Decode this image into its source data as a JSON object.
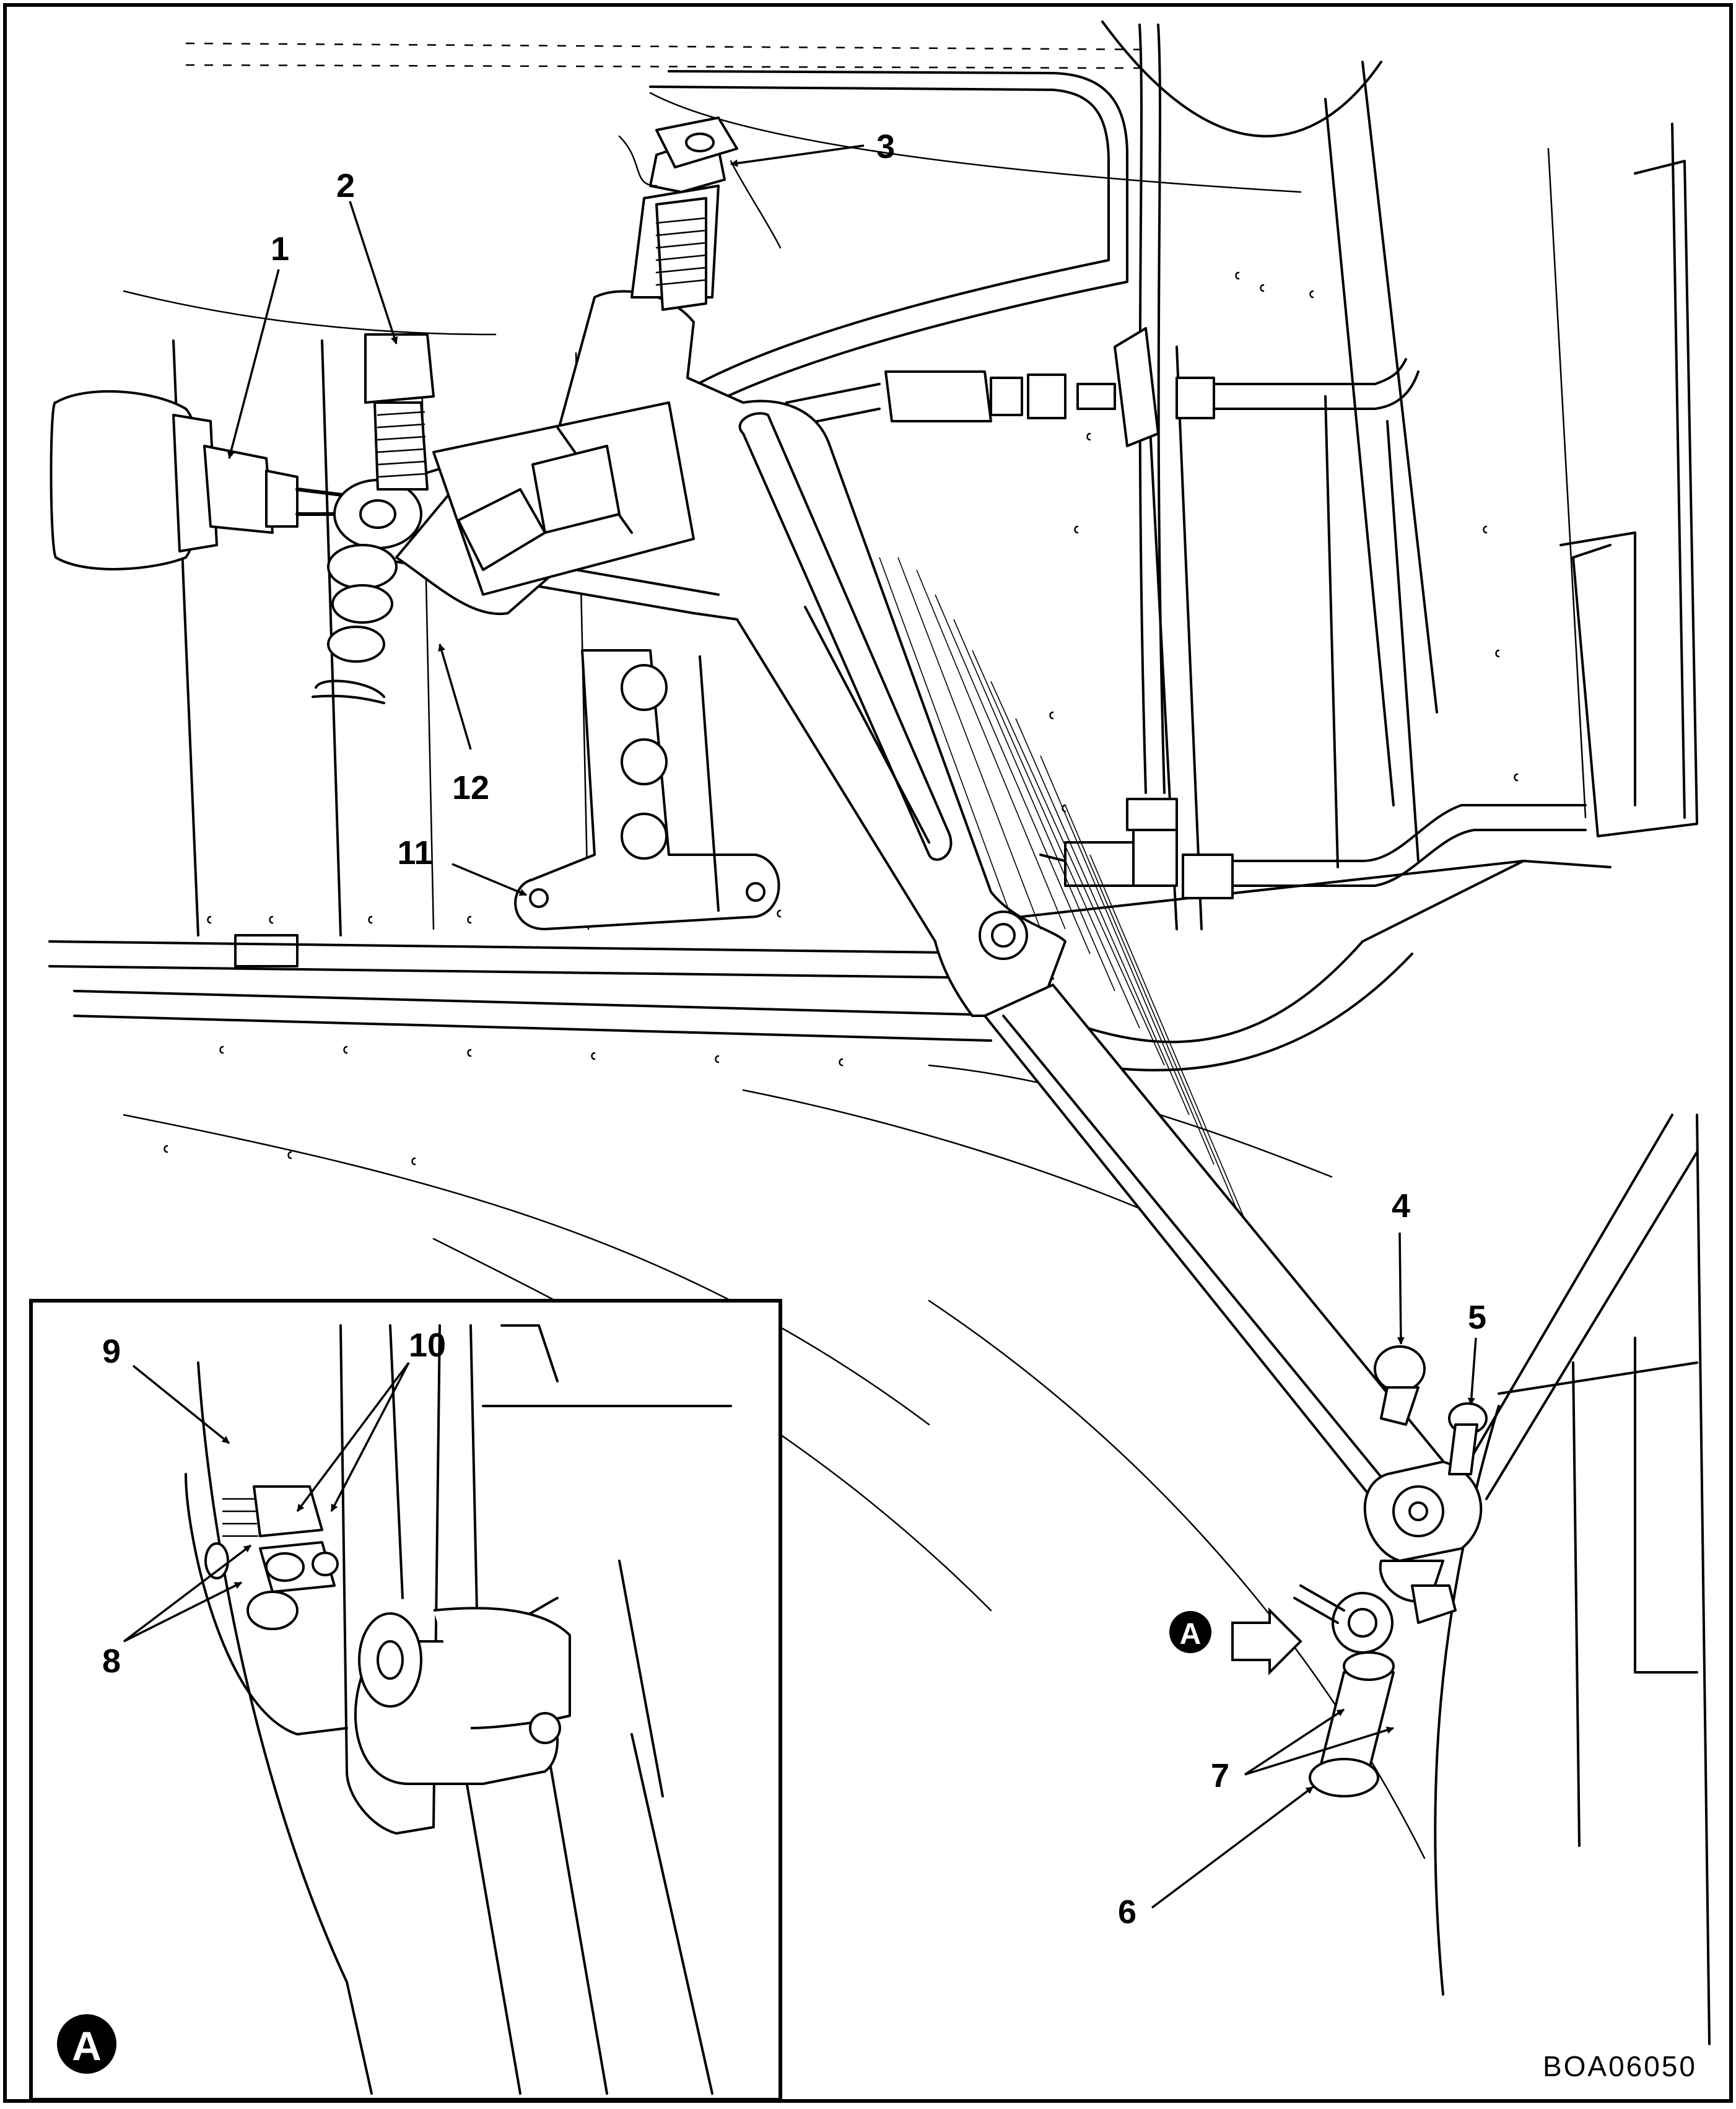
{
  "figure": {
    "code": "BOA06050",
    "detail_marker": "A"
  },
  "callouts": [
    "1",
    "2",
    "3",
    "4",
    "5",
    "6",
    "7",
    "8",
    "9",
    "10",
    "11",
    "12"
  ],
  "icons": {
    "view_arrow": "arrow-right-icon"
  }
}
